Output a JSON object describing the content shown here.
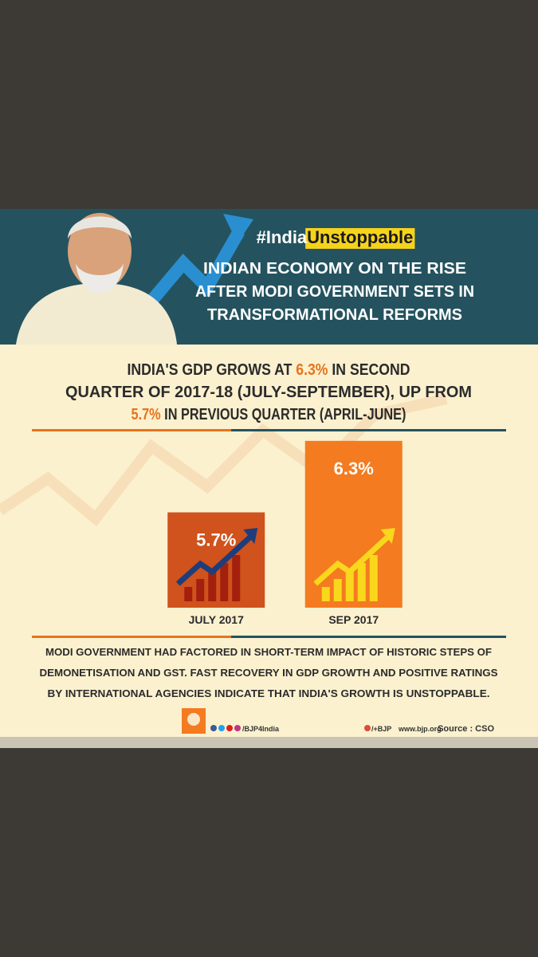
{
  "hashtag": [
    {
      "text": "#India",
      "color": "#ffffff"
    },
    {
      "text": "Unstoppable",
      "color": "#1a1a1a",
      "background": "#f5d31c"
    }
  ],
  "title": [
    "INDIAN ECONOMY ON THE RISE",
    "AFTER MODI GOVERNMENT SETS IN",
    "TRANSFORMATIONAL REFORMS"
  ],
  "headline": [
    [
      {
        "text": "INDIA'S GDP GROWS AT ",
        "color": "#2b2b2b"
      },
      {
        "text": "6.3%",
        "color": "#e8731c"
      },
      {
        "text": " IN SECOND",
        "color": "#2b2b2b"
      }
    ],
    [
      {
        "text": "QUARTER OF 2017-18 (JULY-SEPTEMBER), UP FROM",
        "color": "#2b2b2b"
      }
    ],
    [
      {
        "text": "5.7%",
        "color": "#e8731c"
      },
      {
        "text": " IN PREVIOUS QUARTER (APRIL-JUNE)",
        "color": "#2b2b2b"
      }
    ]
  ],
  "chart_data": {
    "type": "bar",
    "categories": [
      "JULY 2017",
      "SEP 2017"
    ],
    "values": [
      5.7,
      6.3
    ],
    "value_labels": [
      "5.7%",
      "6.3%"
    ],
    "colors": [
      "#d0521c",
      "#f47b20"
    ],
    "ylim": [
      4.9,
      6.6
    ]
  },
  "note": [
    "MODI GOVERNMENT HAD FACTORED IN SHORT-TERM IMPACT OF HISTORIC STEPS OF",
    "DEMONETISATION AND GST. FAST RECOVERY IN GDP GROWTH AND POSITIVE RATINGS",
    "BY INTERNATIONAL AGENCIES INDICATE THAT INDIA'S GROWTH IS UNSTOPPABLE."
  ],
  "footer": {
    "social": "/BJP4India",
    "plus": "/+BJP",
    "website": "www.bjp.org",
    "source": "Source : CSO"
  }
}
